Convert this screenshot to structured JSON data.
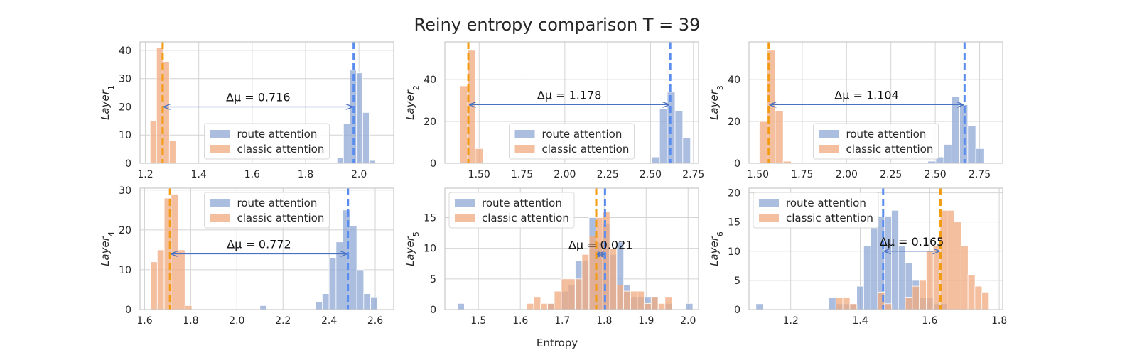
{
  "title": "Reiny entropy comparison T = 39",
  "xlabel": "Entropy",
  "colors": {
    "route": "#8fa8d6",
    "classic": "#f0a97f",
    "route_mean": "#5b8def",
    "classic_mean": "#f39c12",
    "arrow": "#4a72c2"
  },
  "legend": {
    "route": "route attention",
    "classic": "classic attention"
  },
  "chart_data": [
    {
      "type": "bar",
      "ylabel_base": "Layer",
      "ylabel_sub": "1",
      "xlim": [
        1.18,
        2.13
      ],
      "ylim": [
        0,
        43
      ],
      "xticks": [
        1.2,
        1.4,
        1.6,
        1.8,
        2.0
      ],
      "xtick_labels": [
        "1.2",
        "1.4",
        "1.6",
        "1.8",
        "2.0"
      ],
      "yticks": [
        0,
        10,
        20,
        30,
        40
      ],
      "legend_pos": "lower-center",
      "delta_text": "Δμ = 0.716",
      "arrow_y": 20,
      "route_mean": 1.98,
      "classic_mean": 1.265,
      "route": {
        "bin_width": 0.024,
        "bins": [
          [
            1.918,
            2
          ],
          [
            1.942,
            14
          ],
          [
            1.966,
            33
          ],
          [
            1.99,
            32
          ],
          [
            2.014,
            18
          ],
          [
            2.038,
            1
          ]
        ]
      },
      "classic": {
        "bin_width": 0.024,
        "bins": [
          [
            1.218,
            15
          ],
          [
            1.242,
            41
          ],
          [
            1.266,
            36
          ],
          [
            1.29,
            8
          ]
        ]
      }
    },
    {
      "type": "bar",
      "ylabel_base": "Layer",
      "ylabel_sub": "2",
      "xlim": [
        1.3,
        2.78
      ],
      "ylim": [
        0,
        58
      ],
      "xticks": [
        1.5,
        1.75,
        2.0,
        2.25,
        2.5,
        2.75
      ],
      "xtick_labels": [
        "1.50",
        "1.75",
        "2.00",
        "2.25",
        "2.50",
        "2.75"
      ],
      "yticks": [
        0,
        20,
        40
      ],
      "legend_pos": "lower-center",
      "delta_text": "Δμ = 1.178",
      "arrow_y": 28,
      "route_mean": 2.615,
      "classic_mean": 1.437,
      "route": {
        "bin_width": 0.045,
        "bins": [
          [
            2.508,
            3
          ],
          [
            2.553,
            26
          ],
          [
            2.598,
            34
          ],
          [
            2.643,
            25
          ],
          [
            2.688,
            12
          ]
        ]
      },
      "classic": {
        "bin_width": 0.045,
        "bins": [
          [
            1.388,
            37
          ],
          [
            1.433,
            54
          ],
          [
            1.478,
            7
          ]
        ]
      }
    },
    {
      "type": "bar",
      "ylabel_base": "Layer",
      "ylabel_sub": "3",
      "xlim": [
        1.45,
        2.88
      ],
      "ylim": [
        0,
        58
      ],
      "xticks": [
        1.5,
        1.75,
        2.0,
        2.25,
        2.5,
        2.75
      ],
      "xtick_labels": [
        "1.50",
        "1.75",
        "2.00",
        "2.25",
        "2.50",
        "2.75"
      ],
      "yticks": [
        0,
        20,
        40
      ],
      "legend_pos": "lower-center",
      "delta_text": "Δμ = 1.104",
      "arrow_y": 28,
      "route_mean": 2.665,
      "classic_mean": 1.561,
      "route": {
        "bin_width": 0.045,
        "bins": [
          [
            2.458,
            1
          ],
          [
            2.503,
            3
          ],
          [
            2.548,
            9
          ],
          [
            2.593,
            32
          ],
          [
            2.638,
            28
          ],
          [
            2.683,
            18
          ],
          [
            2.728,
            7
          ]
        ]
      },
      "classic": {
        "bin_width": 0.045,
        "bins": [
          [
            1.508,
            20
          ],
          [
            1.553,
            54
          ],
          [
            1.598,
            25
          ],
          [
            1.643,
            1
          ]
        ]
      }
    },
    {
      "type": "bar",
      "ylabel_base": "Layer",
      "ylabel_sub": "4",
      "xlim": [
        1.58,
        2.68
      ],
      "ylim": [
        0,
        30.5
      ],
      "xticks": [
        1.6,
        1.8,
        2.0,
        2.2,
        2.4,
        2.6
      ],
      "xtick_labels": [
        "1.6",
        "1.8",
        "2.0",
        "2.2",
        "2.4",
        "2.6"
      ],
      "yticks": [
        0,
        10,
        20,
        30
      ],
      "legend_pos": "upper-center",
      "delta_text": "Δμ = 0.772",
      "arrow_y": 14,
      "route_mean": 2.482,
      "classic_mean": 1.71,
      "route": {
        "bin_width": 0.03,
        "bins": [
          [
            2.1,
            1
          ],
          [
            2.34,
            2
          ],
          [
            2.37,
            4
          ],
          [
            2.4,
            13
          ],
          [
            2.43,
            17
          ],
          [
            2.46,
            25
          ],
          [
            2.49,
            21
          ],
          [
            2.52,
            10
          ],
          [
            2.55,
            4
          ],
          [
            2.58,
            3
          ]
        ]
      },
      "classic": {
        "bin_width": 0.03,
        "bins": [
          [
            1.625,
            12
          ],
          [
            1.655,
            15
          ],
          [
            1.685,
            28
          ],
          [
            1.715,
            29
          ],
          [
            1.745,
            15
          ],
          [
            1.775,
            1
          ]
        ]
      }
    },
    {
      "type": "bar",
      "ylabel_base": "Layer",
      "ylabel_sub": "5",
      "xlim": [
        1.42,
        2.025
      ],
      "ylim": [
        0,
        19.8
      ],
      "xticks": [
        1.5,
        1.6,
        1.7,
        1.8,
        1.9,
        2.0
      ],
      "xtick_labels": [
        "1.5",
        "1.6",
        "1.7",
        "1.8",
        "1.9",
        "2.0"
      ],
      "yticks": [
        0,
        5,
        10,
        15
      ],
      "legend_pos": "upper-left",
      "delta_text": "Δμ = 0.021",
      "arrow_y": 9,
      "route_mean": 1.802,
      "classic_mean": 1.781,
      "route": {
        "bin_width": 0.0165,
        "bins": [
          [
            1.45,
            1
          ],
          [
            1.665,
            1
          ],
          [
            1.698,
            3
          ],
          [
            1.714,
            4
          ],
          [
            1.731,
            8
          ],
          [
            1.747,
            8
          ],
          [
            1.764,
            15
          ],
          [
            1.78,
            11
          ],
          [
            1.797,
            14
          ],
          [
            1.813,
            9
          ],
          [
            1.83,
            11
          ],
          [
            1.846,
            4
          ],
          [
            1.863,
            2
          ],
          [
            1.879,
            2
          ],
          [
            1.896,
            2
          ],
          [
            1.912,
            2
          ],
          [
            1.945,
            1
          ],
          [
            1.995,
            1
          ]
        ]
      },
      "classic": {
        "bin_width": 0.0165,
        "bins": [
          [
            1.615,
            1
          ],
          [
            1.632,
            2
          ],
          [
            1.648,
            1
          ],
          [
            1.665,
            1
          ],
          [
            1.681,
            3
          ],
          [
            1.698,
            5
          ],
          [
            1.714,
            5
          ],
          [
            1.731,
            5
          ],
          [
            1.747,
            9
          ],
          [
            1.764,
            12
          ],
          [
            1.78,
            15
          ],
          [
            1.797,
            16
          ],
          [
            1.813,
            10
          ],
          [
            1.83,
            4
          ],
          [
            1.846,
            3
          ],
          [
            1.863,
            3
          ],
          [
            1.879,
            3
          ],
          [
            1.896,
            1
          ],
          [
            1.912,
            2
          ],
          [
            1.929,
            1
          ],
          [
            1.945,
            2
          ]
        ]
      }
    },
    {
      "type": "bar",
      "ylabel_base": "Layer",
      "ylabel_sub": "6",
      "xlim": [
        1.08,
        1.81
      ],
      "ylim": [
        0,
        20.8
      ],
      "xticks": [
        1.2,
        1.4,
        1.6,
        1.8
      ],
      "xtick_labels": [
        "1.2",
        "1.4",
        "1.6",
        "1.8"
      ],
      "yticks": [
        0,
        5,
        10,
        15,
        20
      ],
      "legend_pos": "upper-left",
      "delta_text": "Δμ = 0.165",
      "arrow_y": 10,
      "route_mean": 1.466,
      "classic_mean": 1.631,
      "route": {
        "bin_width": 0.0205,
        "bins": [
          [
            1.1,
            1
          ],
          [
            1.31,
            2
          ],
          [
            1.33,
            1
          ],
          [
            1.35,
            1
          ],
          [
            1.37,
            1
          ],
          [
            1.39,
            4
          ],
          [
            1.41,
            11
          ],
          [
            1.43,
            14
          ],
          [
            1.45,
            16
          ],
          [
            1.47,
            16
          ],
          [
            1.49,
            17
          ],
          [
            1.51,
            11
          ],
          [
            1.53,
            8
          ],
          [
            1.55,
            5
          ],
          [
            1.57,
            2
          ],
          [
            1.59,
            2
          ],
          [
            1.61,
            1
          ],
          [
            1.63,
            1
          ]
        ]
      },
      "classic": {
        "bin_width": 0.0205,
        "bins": [
          [
            1.33,
            2
          ],
          [
            1.35,
            2
          ],
          [
            1.37,
            1
          ],
          [
            1.45,
            3
          ],
          [
            1.47,
            1
          ],
          [
            1.53,
            2
          ],
          [
            1.55,
            4
          ],
          [
            1.57,
            5
          ],
          [
            1.59,
            10
          ],
          [
            1.61,
            11
          ],
          [
            1.63,
            17
          ],
          [
            1.65,
            17
          ],
          [
            1.67,
            15
          ],
          [
            1.69,
            11
          ],
          [
            1.71,
            6
          ],
          [
            1.73,
            4
          ],
          [
            1.75,
            3
          ]
        ]
      }
    }
  ]
}
